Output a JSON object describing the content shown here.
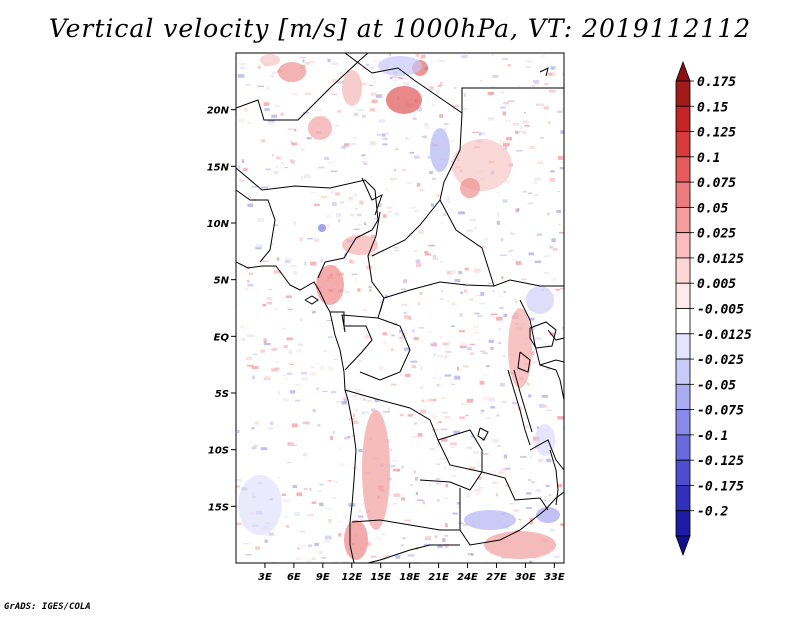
{
  "title": "Vertical velocity [m/s] at 1000hPa, VT: 2019112112",
  "credit": "GrADS: IGES/COLA",
  "map": {
    "lon_range": [
      0,
      34
    ],
    "lat_range": [
      -20,
      25
    ],
    "lat_ticks": [
      {
        "value": 20,
        "label": "20N"
      },
      {
        "value": 15,
        "label": "15N"
      },
      {
        "value": 10,
        "label": "10N"
      },
      {
        "value": 5,
        "label": "5N"
      },
      {
        "value": 0,
        "label": "EQ"
      },
      {
        "value": -5,
        "label": "5S"
      },
      {
        "value": -10,
        "label": "10S"
      },
      {
        "value": -15,
        "label": "15S"
      }
    ],
    "lon_ticks": [
      {
        "value": 3,
        "label": "3E"
      },
      {
        "value": 6,
        "label": "6E"
      },
      {
        "value": 9,
        "label": "9E"
      },
      {
        "value": 12,
        "label": "12E"
      },
      {
        "value": 15,
        "label": "15E"
      },
      {
        "value": 18,
        "label": "18E"
      },
      {
        "value": 21,
        "label": "21E"
      },
      {
        "value": 24,
        "label": "24E"
      },
      {
        "value": 27,
        "label": "27E"
      },
      {
        "value": 30,
        "label": "30E"
      },
      {
        "value": 33,
        "label": "33E"
      }
    ]
  },
  "colorbar": {
    "levels": [
      {
        "label": "0.175",
        "color": "#a31a1a"
      },
      {
        "label": "0.15",
        "color": "#c42424"
      },
      {
        "label": "0.125",
        "color": "#d63a3a"
      },
      {
        "label": "0.1",
        "color": "#e55a5a"
      },
      {
        "label": "0.075",
        "color": "#ee7c7c"
      },
      {
        "label": "0.05",
        "color": "#f59c9c"
      },
      {
        "label": "0.025",
        "color": "#fbbcbc"
      },
      {
        "label": "0.0125",
        "color": "#fdd6d6"
      },
      {
        "label": "0.005",
        "color": "#feeaea"
      },
      {
        "label": "-0.005",
        "color": "#ffffff"
      },
      {
        "label": "-0.0125",
        "color": "#e4e4fc"
      },
      {
        "label": "-0.025",
        "color": "#cacaf8"
      },
      {
        "label": "-0.05",
        "color": "#ababf2"
      },
      {
        "label": "-0.075",
        "color": "#8a8aea"
      },
      {
        "label": "-0.1",
        "color": "#6a6ade"
      },
      {
        "label": "-0.125",
        "color": "#4d4dd0"
      },
      {
        "label": "-0.175",
        "color": "#3030bd"
      },
      {
        "label": "-0.2",
        "color": "#1c1ca6"
      }
    ],
    "top_arrow_color": "#8c1010",
    "bottom_arrow_color": "#12128c"
  }
}
